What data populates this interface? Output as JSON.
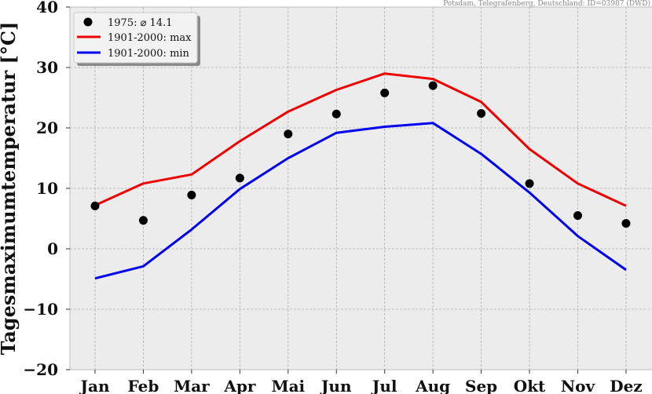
{
  "chart_data": {
    "type": "line",
    "source_note": "Potsdam, Telegrafenberg, Deutschland: ID=03987 (DWD)",
    "ylabel": "Tagesmaximumtemperatur [°C]",
    "xlabel": "",
    "categories": [
      "Jan",
      "Feb",
      "Mar",
      "Apr",
      "Mai",
      "Jun",
      "Jul",
      "Aug",
      "Sep",
      "Okt",
      "Nov",
      "Dez"
    ],
    "ylim": [
      -20,
      40
    ],
    "yticks": [
      "40",
      "30",
      "20",
      "10",
      "0",
      "−10",
      "−20"
    ],
    "ytick_values": [
      40,
      30,
      20,
      10,
      0,
      -10,
      -20
    ],
    "grid": true,
    "legend_position": "top-left",
    "series": [
      {
        "name": "1975: ⌀ 14.1",
        "style": "points",
        "color": "#000000",
        "values": [
          7.1,
          4.7,
          8.9,
          11.7,
          19.0,
          22.3,
          25.8,
          27.0,
          22.4,
          10.8,
          5.5,
          4.2
        ]
      },
      {
        "name": "1901-2000: max",
        "style": "line",
        "color": "#ee0000",
        "values": [
          7.2,
          10.8,
          12.3,
          17.8,
          22.7,
          26.3,
          29.0,
          28.1,
          24.3,
          16.5,
          10.8,
          7.1
        ]
      },
      {
        "name": "1901-2000: min",
        "style": "line",
        "color": "#0000ee",
        "values": [
          -4.9,
          -2.9,
          3.2,
          9.9,
          15.0,
          19.2,
          20.2,
          20.8,
          15.7,
          9.3,
          2.1,
          -3.5
        ]
      }
    ]
  }
}
